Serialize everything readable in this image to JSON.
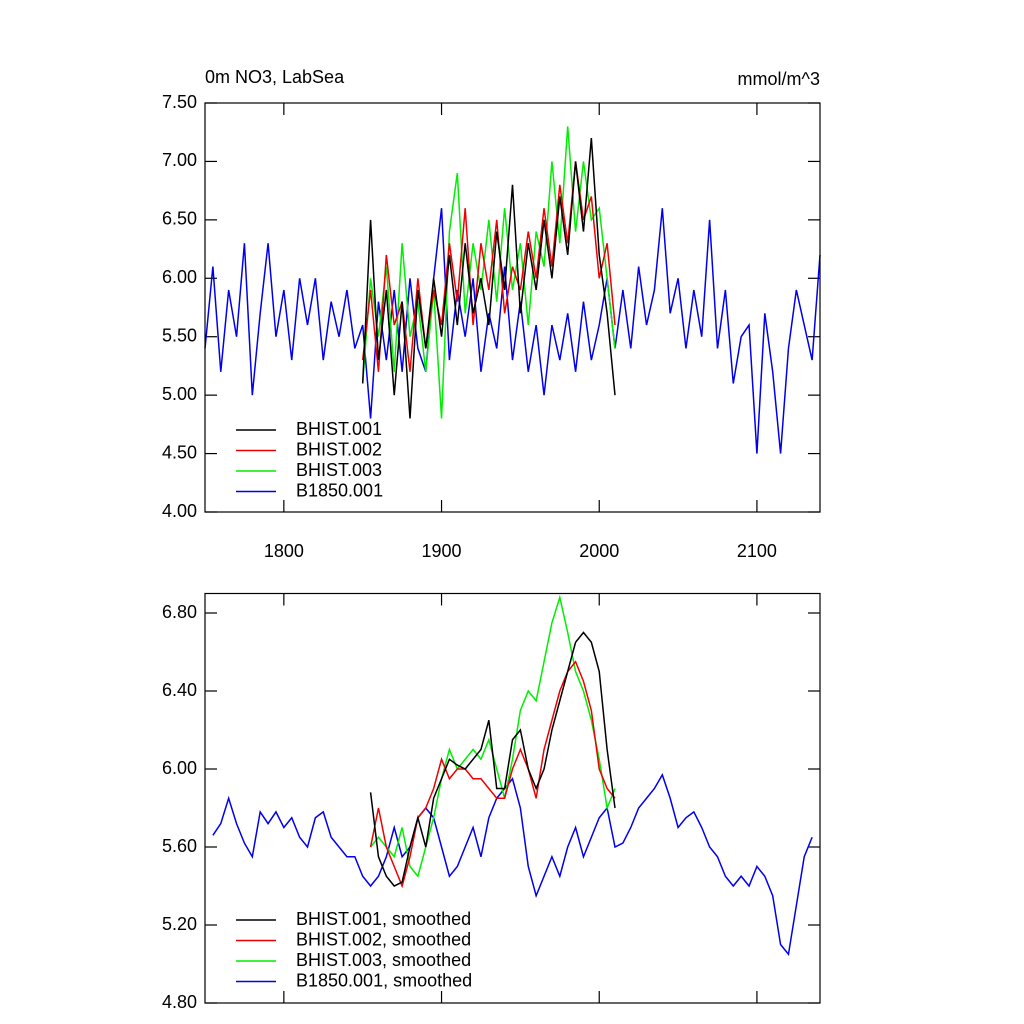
{
  "chart_data": [
    {
      "type": "line",
      "title": "0m NO3, LabSea",
      "units": "mmol/m^3",
      "xlim": [
        1750,
        2140
      ],
      "xticks": [
        1800,
        1900,
        2000,
        2100
      ],
      "ylim": [
        4.0,
        7.5
      ],
      "yticks": [
        {
          "value": 4.0,
          "label": "4.00"
        },
        {
          "value": 4.5,
          "label": "4.50"
        },
        {
          "value": 5.0,
          "label": "5.00"
        },
        {
          "value": 5.5,
          "label": "5.50"
        },
        {
          "value": 6.0,
          "label": "6.00"
        },
        {
          "value": 6.5,
          "label": "6.50"
        },
        {
          "value": 7.0,
          "label": "7.00"
        },
        {
          "value": 7.5,
          "label": "7.50"
        }
      ],
      "series": [
        {
          "name": "B1850.001",
          "color": "#0000ee",
          "x": [
            1750,
            1755,
            1760,
            1765,
            1770,
            1775,
            1780,
            1785,
            1790,
            1795,
            1800,
            1805,
            1810,
            1815,
            1820,
            1825,
            1830,
            1835,
            1840,
            1845,
            1850,
            1855,
            1860,
            1865,
            1870,
            1875,
            1880,
            1885,
            1890,
            1895,
            1900,
            1905,
            1910,
            1915,
            1920,
            1925,
            1930,
            1935,
            1940,
            1945,
            1950,
            1955,
            1960,
            1965,
            1970,
            1975,
            1980,
            1985,
            1990,
            1995,
            2000,
            2005,
            2010,
            2015,
            2020,
            2025,
            2030,
            2035,
            2040,
            2045,
            2050,
            2055,
            2060,
            2065,
            2070,
            2075,
            2080,
            2085,
            2090,
            2095,
            2100,
            2105,
            2110,
            2115,
            2120,
            2125,
            2130,
            2135,
            2140
          ],
          "values": [
            5.4,
            6.1,
            5.2,
            5.9,
            5.5,
            6.3,
            5.0,
            5.7,
            6.3,
            5.5,
            5.9,
            5.3,
            6.0,
            5.6,
            6.0,
            5.3,
            5.8,
            5.5,
            5.9,
            5.4,
            5.6,
            4.8,
            5.8,
            5.3,
            5.9,
            5.2,
            6.0,
            5.4,
            5.2,
            6.0,
            6.6,
            5.3,
            5.9,
            5.5,
            6.0,
            5.2,
            5.7,
            5.4,
            6.1,
            5.3,
            5.8,
            5.2,
            5.6,
            5.0,
            5.6,
            5.3,
            5.7,
            5.2,
            5.8,
            5.3,
            5.6,
            6.0,
            5.4,
            5.9,
            5.4,
            6.1,
            5.6,
            5.9,
            6.6,
            5.7,
            6.0,
            5.4,
            5.9,
            5.5,
            6.5,
            5.4,
            5.9,
            5.1,
            5.5,
            5.6,
            4.5,
            5.7,
            5.2,
            4.5,
            5.4,
            5.9,
            5.6,
            5.3,
            6.2
          ]
        },
        {
          "name": "BHIST.003",
          "color": "#00ee00",
          "x": [
            1850,
            1855,
            1860,
            1865,
            1870,
            1875,
            1880,
            1885,
            1890,
            1895,
            1900,
            1905,
            1910,
            1915,
            1920,
            1925,
            1930,
            1935,
            1940,
            1945,
            1950,
            1955,
            1960,
            1965,
            1970,
            1975,
            1980,
            1985,
            1990,
            1995,
            2000,
            2005,
            2010
          ],
          "values": [
            5.1,
            6.0,
            5.5,
            6.1,
            5.2,
            6.3,
            5.5,
            5.8,
            5.2,
            5.9,
            4.8,
            6.4,
            6.9,
            5.7,
            6.3,
            5.9,
            6.5,
            5.8,
            6.6,
            5.9,
            6.3,
            5.6,
            6.4,
            6.1,
            7.0,
            6.3,
            7.3,
            6.4,
            7.0,
            6.5,
            6.6,
            6.0,
            5.4
          ]
        },
        {
          "name": "BHIST.002",
          "color": "#ee0000",
          "x": [
            1850,
            1855,
            1860,
            1865,
            1870,
            1875,
            1880,
            1885,
            1890,
            1895,
            1900,
            1905,
            1910,
            1915,
            1920,
            1925,
            1930,
            1935,
            1940,
            1945,
            1950,
            1955,
            1960,
            1965,
            1970,
            1975,
            1980,
            1985,
            1990,
            1995,
            2000,
            2005,
            2010
          ],
          "values": [
            5.3,
            5.9,
            5.2,
            6.2,
            5.6,
            5.8,
            5.2,
            6.0,
            5.4,
            5.9,
            5.6,
            6.3,
            5.8,
            6.6,
            5.6,
            6.3,
            5.9,
            6.5,
            5.7,
            6.1,
            5.9,
            6.4,
            6.0,
            6.6,
            6.1,
            6.8,
            6.3,
            7.0,
            6.5,
            6.7,
            6.0,
            6.3,
            5.6
          ]
        },
        {
          "name": "BHIST.001",
          "color": "#000000",
          "x": [
            1850,
            1855,
            1860,
            1865,
            1870,
            1875,
            1880,
            1885,
            1890,
            1895,
            1900,
            1905,
            1910,
            1915,
            1920,
            1925,
            1930,
            1935,
            1940,
            1945,
            1950,
            1955,
            1960,
            1965,
            1970,
            1975,
            1980,
            1985,
            1990,
            1995,
            2000,
            2005,
            2010
          ],
          "values": [
            5.1,
            6.5,
            5.3,
            5.9,
            5.0,
            5.8,
            4.8,
            5.9,
            5.4,
            6.0,
            5.5,
            6.2,
            5.6,
            6.3,
            5.7,
            6.0,
            5.6,
            6.4,
            5.9,
            6.8,
            5.7,
            6.3,
            5.9,
            6.5,
            6.0,
            6.7,
            6.2,
            7.0,
            6.4,
            7.2,
            6.2,
            5.7,
            5.0
          ]
        }
      ]
    },
    {
      "type": "line",
      "xlim": [
        1750,
        2140
      ],
      "ylim": [
        4.8,
        6.9
      ],
      "yticks": [
        {
          "value": 4.8,
          "label": "4.80"
        },
        {
          "value": 5.2,
          "label": "5.20"
        },
        {
          "value": 5.6,
          "label": "5.60"
        },
        {
          "value": 6.0,
          "label": "6.00"
        },
        {
          "value": 6.4,
          "label": "6.40"
        },
        {
          "value": 6.8,
          "label": "6.80"
        }
      ],
      "series": [
        {
          "name": "B1850.001, smoothed",
          "color": "#0000ee",
          "x": [
            1755,
            1760,
            1765,
            1770,
            1775,
            1780,
            1785,
            1790,
            1795,
            1800,
            1805,
            1810,
            1815,
            1820,
            1825,
            1830,
            1835,
            1840,
            1845,
            1850,
            1855,
            1860,
            1865,
            1870,
            1875,
            1880,
            1885,
            1890,
            1895,
            1900,
            1905,
            1910,
            1915,
            1920,
            1925,
            1930,
            1935,
            1940,
            1945,
            1950,
            1955,
            1960,
            1965,
            1970,
            1975,
            1980,
            1985,
            1990,
            1995,
            2000,
            2005,
            2010,
            2015,
            2020,
            2025,
            2030,
            2035,
            2040,
            2045,
            2050,
            2055,
            2060,
            2065,
            2070,
            2075,
            2080,
            2085,
            2090,
            2095,
            2100,
            2105,
            2110,
            2115,
            2120,
            2125,
            2130,
            2135
          ],
          "values": [
            5.66,
            5.72,
            5.85,
            5.72,
            5.62,
            5.55,
            5.78,
            5.72,
            5.78,
            5.7,
            5.75,
            5.65,
            5.6,
            5.75,
            5.78,
            5.65,
            5.6,
            5.55,
            5.55,
            5.45,
            5.4,
            5.45,
            5.55,
            5.7,
            5.55,
            5.6,
            5.75,
            5.8,
            5.75,
            5.6,
            5.45,
            5.5,
            5.6,
            5.7,
            5.55,
            5.75,
            5.85,
            5.9,
            5.95,
            5.8,
            5.5,
            5.35,
            5.45,
            5.55,
            5.45,
            5.6,
            5.7,
            5.55,
            5.65,
            5.75,
            5.8,
            5.6,
            5.62,
            5.7,
            5.8,
            5.85,
            5.9,
            5.97,
            5.85,
            5.7,
            5.75,
            5.78,
            5.7,
            5.6,
            5.55,
            5.45,
            5.4,
            5.45,
            5.4,
            5.5,
            5.45,
            5.35,
            5.1,
            5.05,
            5.3,
            5.55,
            5.65
          ]
        },
        {
          "name": "BHIST.003, smoothed",
          "color": "#00ee00",
          "x": [
            1855,
            1860,
            1865,
            1870,
            1875,
            1880,
            1885,
            1890,
            1895,
            1900,
            1905,
            1910,
            1915,
            1920,
            1925,
            1930,
            1935,
            1940,
            1945,
            1950,
            1955,
            1960,
            1965,
            1970,
            1975,
            1980,
            1985,
            1990,
            1995,
            2000,
            2005,
            2010
          ],
          "values": [
            5.6,
            5.65,
            5.6,
            5.55,
            5.7,
            5.5,
            5.45,
            5.6,
            5.75,
            5.95,
            6.1,
            6.0,
            6.05,
            6.1,
            6.05,
            6.15,
            6.0,
            5.85,
            6.05,
            6.3,
            6.4,
            6.35,
            6.55,
            6.75,
            6.88,
            6.7,
            6.5,
            6.4,
            6.25,
            6.05,
            5.8,
            5.9
          ]
        },
        {
          "name": "BHIST.002, smoothed",
          "color": "#ee0000",
          "x": [
            1855,
            1860,
            1865,
            1870,
            1875,
            1880,
            1885,
            1890,
            1895,
            1900,
            1905,
            1910,
            1915,
            1920,
            1925,
            1930,
            1935,
            1940,
            1945,
            1950,
            1955,
            1960,
            1965,
            1970,
            1975,
            1980,
            1985,
            1990,
            1995,
            2000,
            2005,
            2010
          ],
          "values": [
            5.6,
            5.8,
            5.6,
            5.5,
            5.4,
            5.55,
            5.75,
            5.8,
            5.9,
            6.05,
            5.95,
            6.0,
            6.0,
            5.95,
            5.95,
            5.9,
            5.85,
            5.85,
            6.0,
            6.1,
            6.0,
            5.85,
            6.1,
            6.25,
            6.4,
            6.5,
            6.55,
            6.45,
            6.3,
            6.0,
            5.9,
            5.85
          ]
        },
        {
          "name": "BHIST.001, smoothed",
          "color": "#000000",
          "x": [
            1855,
            1860,
            1865,
            1870,
            1875,
            1880,
            1885,
            1890,
            1895,
            1900,
            1905,
            1910,
            1915,
            1920,
            1925,
            1930,
            1935,
            1940,
            1945,
            1950,
            1955,
            1960,
            1965,
            1970,
            1975,
            1980,
            1985,
            1990,
            1995,
            2000,
            2005,
            2010
          ],
          "values": [
            5.88,
            5.55,
            5.45,
            5.4,
            5.42,
            5.6,
            5.75,
            5.6,
            5.85,
            5.95,
            6.05,
            6.02,
            6.0,
            6.05,
            6.1,
            6.25,
            5.9,
            5.9,
            6.15,
            6.2,
            6.0,
            5.9,
            6.0,
            6.2,
            6.35,
            6.5,
            6.65,
            6.7,
            6.65,
            6.5,
            6.1,
            5.8
          ]
        }
      ]
    }
  ]
}
